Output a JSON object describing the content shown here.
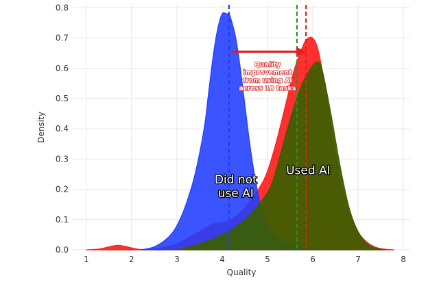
{
  "chart_data": {
    "type": "area",
    "title": "",
    "xlabel": "Quality",
    "ylabel": "Density",
    "xlim": [
      0.7,
      8.15
    ],
    "ylim": [
      0,
      0.81
    ],
    "xticks": [
      1,
      2,
      3,
      4,
      5,
      6,
      7,
      8
    ],
    "yticks": [
      0.0,
      0.1,
      0.2,
      0.3,
      0.4,
      0.5,
      0.6,
      0.7,
      0.8
    ],
    "xtick_labels": [
      "1",
      "2",
      "3",
      "4",
      "5",
      "6",
      "7",
      "8"
    ],
    "ytick_labels": [
      "0.0",
      "0.1",
      "0.2",
      "0.3",
      "0.4",
      "0.5",
      "0.6",
      "0.7",
      "0.8"
    ],
    "grid": true,
    "series": [
      {
        "name": "Did not use AI",
        "color": "#1f3dff",
        "x": [
          2.2,
          2.5,
          2.8,
          3.0,
          3.2,
          3.4,
          3.6,
          3.7,
          3.8,
          3.9,
          4.0,
          4.1,
          4.15,
          4.2,
          4.3,
          4.4,
          4.5,
          4.6,
          4.7,
          4.8,
          4.9,
          5.0,
          5.2,
          5.4,
          5.6,
          5.8,
          6.0,
          6.2
        ],
        "y": [
          0.0,
          0.01,
          0.04,
          0.08,
          0.15,
          0.25,
          0.4,
          0.52,
          0.64,
          0.73,
          0.78,
          0.78,
          0.78,
          0.76,
          0.7,
          0.6,
          0.48,
          0.36,
          0.26,
          0.18,
          0.12,
          0.08,
          0.04,
          0.025,
          0.015,
          0.008,
          0.003,
          0.0
        ]
      },
      {
        "name": "Used AI",
        "color": "#ff1a1a",
        "x": [
          1.0,
          1.3,
          1.5,
          1.7,
          1.9,
          2.1,
          2.3,
          2.6,
          3.0,
          3.5,
          3.8,
          4.0,
          4.2,
          4.5,
          4.8,
          5.0,
          5.2,
          5.4,
          5.6,
          5.8,
          5.9,
          6.0,
          6.1,
          6.2,
          6.4,
          6.6,
          6.8,
          7.0,
          7.2,
          7.4,
          7.6,
          7.8
        ],
        "y": [
          0.0,
          0.003,
          0.01,
          0.015,
          0.01,
          0.003,
          0.0,
          0.005,
          0.02,
          0.06,
          0.085,
          0.09,
          0.1,
          0.14,
          0.2,
          0.26,
          0.36,
          0.48,
          0.6,
          0.68,
          0.7,
          0.7,
          0.67,
          0.6,
          0.42,
          0.25,
          0.13,
          0.06,
          0.025,
          0.008,
          0.002,
          0.0
        ]
      },
      {
        "name": "",
        "color": "#3b6000",
        "x": [
          3.0,
          3.5,
          4.0,
          4.5,
          5.0,
          5.2,
          5.4,
          5.6,
          5.8,
          6.0,
          6.1,
          6.2,
          6.4,
          6.6,
          6.8,
          7.0,
          7.2,
          7.4,
          7.6
        ],
        "y": [
          0.0,
          0.02,
          0.05,
          0.1,
          0.19,
          0.27,
          0.38,
          0.48,
          0.56,
          0.61,
          0.62,
          0.6,
          0.45,
          0.28,
          0.14,
          0.06,
          0.02,
          0.005,
          0.0
        ]
      }
    ],
    "vlines": [
      {
        "x": 4.15,
        "color": "#1f3dff"
      },
      {
        "x": 5.65,
        "color": "#2e8b2e"
      },
      {
        "x": 5.85,
        "color": "#e02020"
      }
    ],
    "annotations": {
      "arrow": {
        "x_start": 4.2,
        "x_end": 5.85,
        "y": 0.655,
        "color": "#e02020"
      },
      "text_lines": [
        "Quality",
        "improvement",
        "from using AI",
        "across 18 tasks"
      ],
      "text_x": 5.0,
      "text_y": 0.605,
      "region_labels": [
        {
          "lines": [
            "Did not",
            "use AI"
          ],
          "x": 4.3,
          "y": 0.22
        },
        {
          "lines": [
            "Used AI"
          ],
          "x": 5.9,
          "y": 0.25
        }
      ]
    }
  }
}
